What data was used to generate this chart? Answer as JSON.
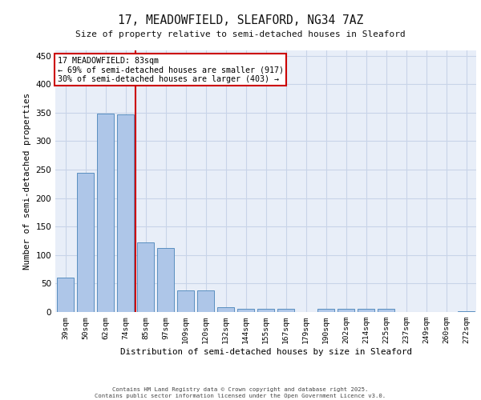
{
  "title_line1": "17, MEADOWFIELD, SLEAFORD, NG34 7AZ",
  "title_line2": "Size of property relative to semi-detached houses in Sleaford",
  "xlabel": "Distribution of semi-detached houses by size in Sleaford",
  "ylabel": "Number of semi-detached properties",
  "categories": [
    "39sqm",
    "50sqm",
    "62sqm",
    "74sqm",
    "85sqm",
    "97sqm",
    "109sqm",
    "120sqm",
    "132sqm",
    "144sqm",
    "155sqm",
    "167sqm",
    "179sqm",
    "190sqm",
    "202sqm",
    "214sqm",
    "225sqm",
    "237sqm",
    "249sqm",
    "260sqm",
    "272sqm"
  ],
  "values": [
    60,
    245,
    348,
    347,
    122,
    113,
    38,
    38,
    9,
    6,
    5,
    5,
    0,
    6,
    6,
    5,
    5,
    0,
    0,
    0,
    2
  ],
  "bar_color": "#aec6e8",
  "bar_edge_color": "#5a8fc0",
  "grid_color": "#c8d4e8",
  "background_color": "#e8eef8",
  "vline_color": "#cc0000",
  "vline_x": 3.5,
  "annotation_text": "17 MEADOWFIELD: 83sqm\n← 69% of semi-detached houses are smaller (917)\n30% of semi-detached houses are larger (403) →",
  "annotation_box_color": "#cc0000",
  "footer_line1": "Contains HM Land Registry data © Crown copyright and database right 2025.",
  "footer_line2": "Contains public sector information licensed under the Open Government Licence v3.0.",
  "ylim": [
    0,
    460
  ],
  "yticks": [
    0,
    50,
    100,
    150,
    200,
    250,
    300,
    350,
    400,
    450
  ]
}
